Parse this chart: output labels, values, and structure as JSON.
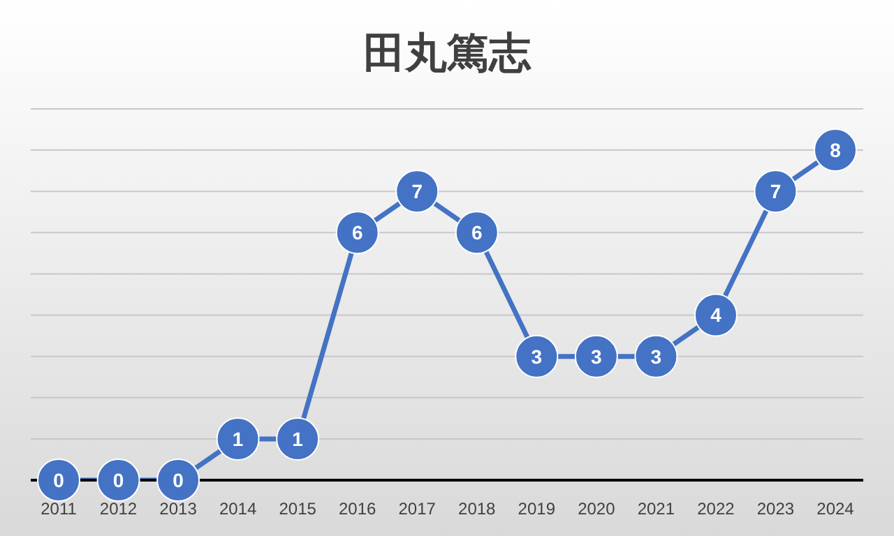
{
  "chart_data": {
    "type": "line",
    "title": "田丸篤志",
    "categories": [
      "2011",
      "2012",
      "2013",
      "2014",
      "2015",
      "2016",
      "2017",
      "2018",
      "2019",
      "2020",
      "2021",
      "2022",
      "2023",
      "2024"
    ],
    "series": [
      {
        "color": "#4472c4",
        "values": [
          0,
          0,
          0,
          1,
          1,
          6,
          7,
          6,
          3,
          3,
          3,
          4,
          7,
          8
        ]
      }
    ],
    "ylim": [
      0,
      9
    ],
    "yticks": [
      {
        "value": 0,
        "label": null
      },
      {
        "value": 1,
        "label": null
      },
      {
        "value": 2,
        "label": null
      },
      {
        "value": 3,
        "label": null
      },
      {
        "value": 4,
        "label": null
      },
      {
        "value": 5,
        "label": null
      },
      {
        "value": 6,
        "label": null
      },
      {
        "value": 7,
        "label": null
      },
      {
        "value": 8,
        "label": null
      },
      {
        "value": 9,
        "label": null
      }
    ],
    "tick_labels": "x",
    "grid": "y",
    "data_labels": true,
    "marker": "circle",
    "line_style": "solid",
    "legend": false
  }
}
